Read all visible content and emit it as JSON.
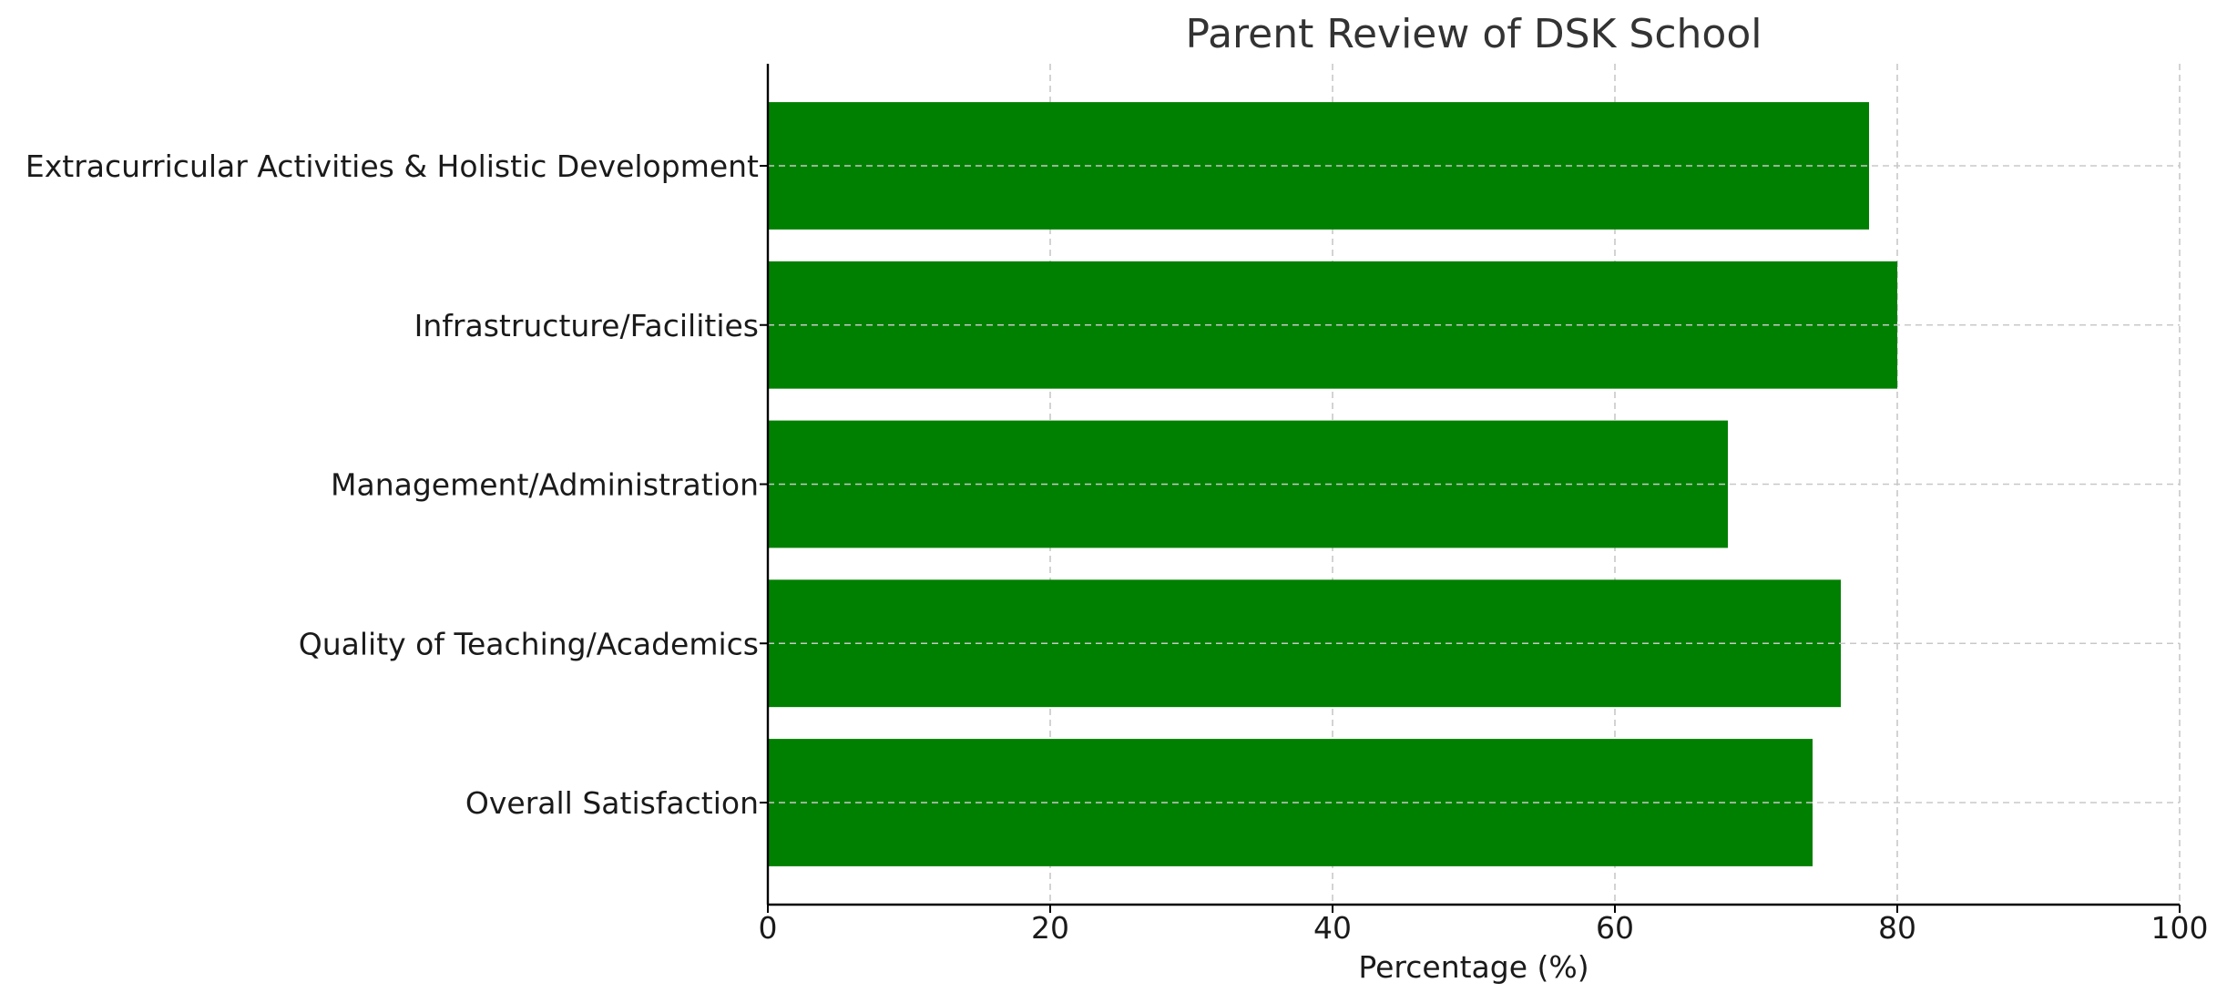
{
  "chart_data": {
    "type": "bar",
    "orientation": "horizontal",
    "title": "Parent Review of DSK School",
    "xlabel": "Percentage (%)",
    "ylabel": "",
    "xlim": [
      0,
      100
    ],
    "x_ticks": [
      0,
      20,
      40,
      60,
      80,
      100
    ],
    "categories": [
      "Overall Satisfaction",
      "Quality of Teaching/Academics",
      "Management/Administration",
      "Infrastructure/Facilities",
      "Extracurricular Activities & Holistic Development"
    ],
    "values": [
      74,
      76,
      68,
      80,
      78
    ],
    "bar_color": "#008000",
    "grid": true,
    "grid_style": "dashed"
  }
}
